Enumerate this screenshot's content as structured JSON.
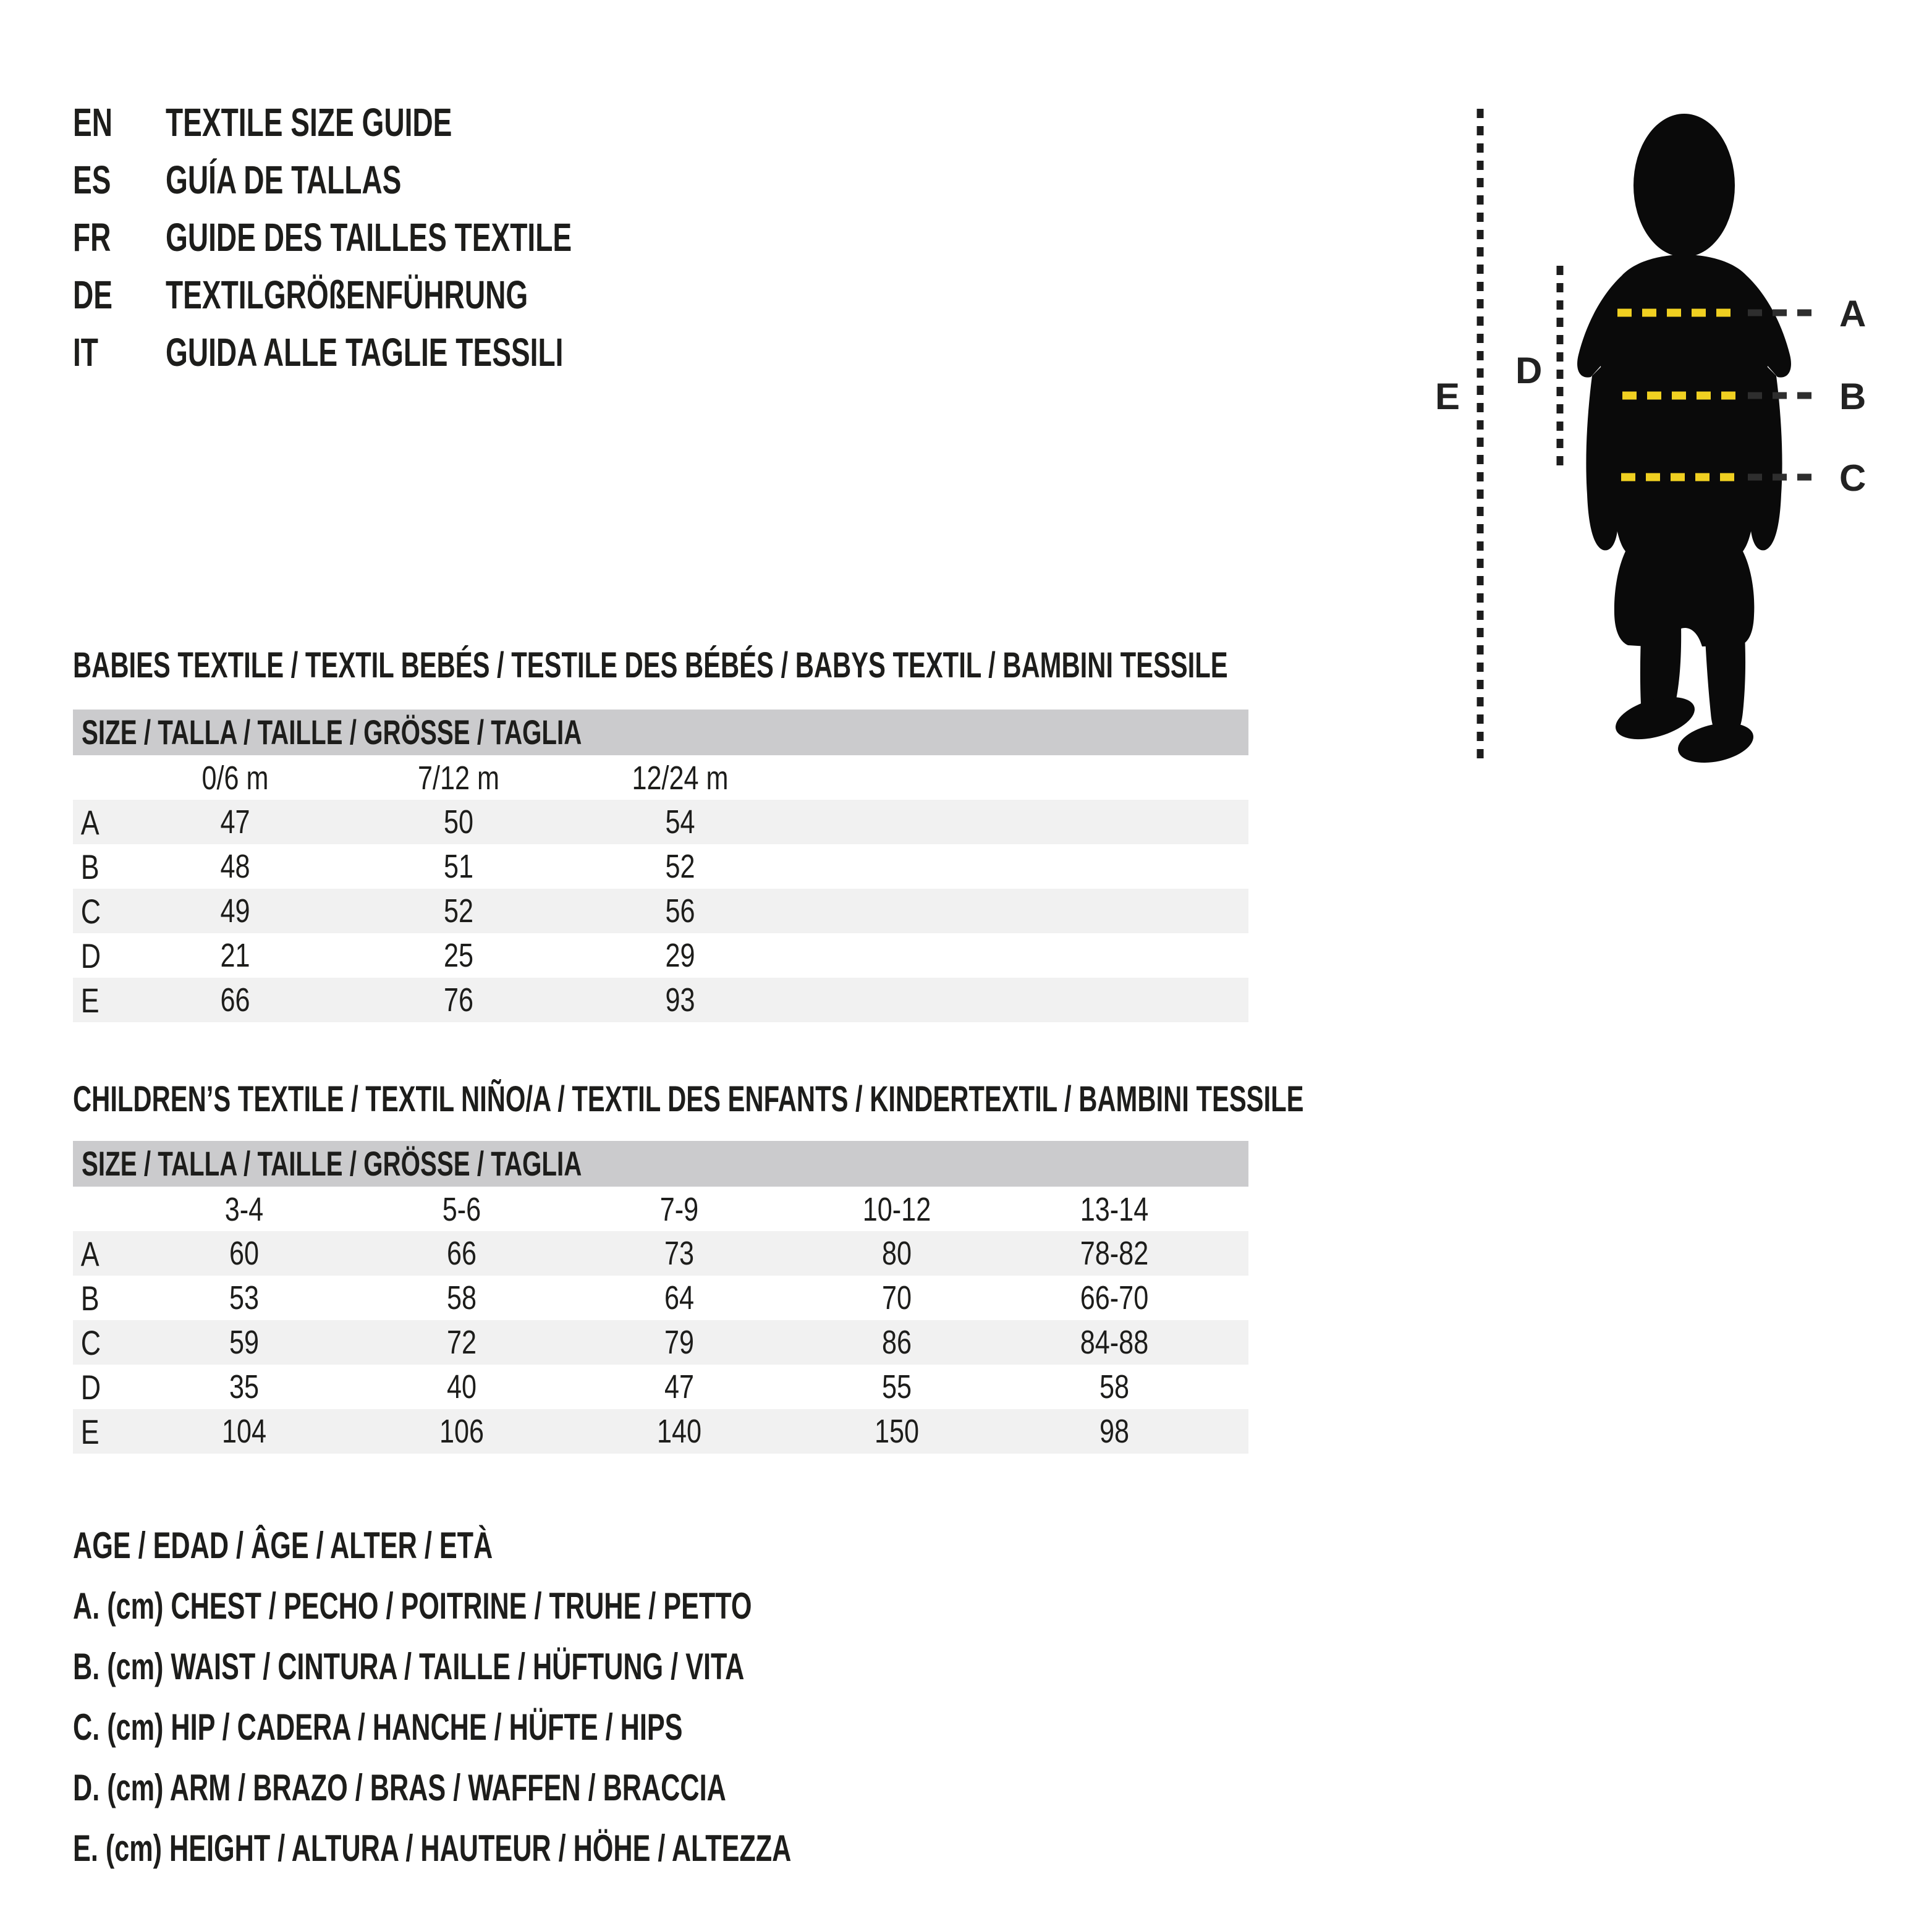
{
  "page": {
    "background": "#ffffff",
    "text_color": "#1d1d1b"
  },
  "colors": {
    "accent_yellow": "#f0d021",
    "dark_dash": "#2e2e2e",
    "silhouette": "#0a0a0a",
    "table_header_bg": "#cbcbcd",
    "row_stripe_bg": "#f1f1f1"
  },
  "languages": [
    {
      "code": "EN",
      "title": "TEXTILE SIZE GUIDE"
    },
    {
      "code": "ES",
      "title": "GUÍA DE TALLAS"
    },
    {
      "code": "FR",
      "title": "GUIDE DES TAILLES TEXTILE"
    },
    {
      "code": "DE",
      "title": "TEXTILGRÖßENFÜHRUNG"
    },
    {
      "code": "IT",
      "title": "GUIDA ALLE TAGLIE TESSILI"
    }
  ],
  "figure": {
    "icon": "child-silhouette",
    "labels": {
      "A": "A",
      "B": "B",
      "C": "C",
      "D": "D",
      "E": "E"
    }
  },
  "babies_table": {
    "section_title": "BABIES TEXTILE / TEXTIL BEBÉS / TESTILE DES BÉBÉS / BABYS TEXTIL / BAMBINI TESSILE",
    "header": "SIZE / TALLA / TAILLE / GRÖSSE / TAGLIA",
    "columns": [
      "0/6 m",
      "7/12 m",
      "12/24 m"
    ],
    "rows": [
      {
        "label": "A",
        "values": [
          "47",
          "50",
          "54"
        ]
      },
      {
        "label": "B",
        "values": [
          "48",
          "51",
          "52"
        ]
      },
      {
        "label": "C",
        "values": [
          "49",
          "52",
          "56"
        ]
      },
      {
        "label": "D",
        "values": [
          "21",
          "25",
          "29"
        ]
      },
      {
        "label": "E",
        "values": [
          "66",
          "76",
          "93"
        ]
      }
    ]
  },
  "children_table": {
    "section_title": "CHILDREN’S TEXTILE / TEXTIL NIÑO/A / TEXTIL DES ENFANTS / KINDERTEXTIL / BAMBINI TESSILE",
    "header": "SIZE / TALLA / TAILLE / GRÖSSE / TAGLIA",
    "columns": [
      "3-4",
      "5-6",
      "7-9",
      "10-12",
      "13-14"
    ],
    "rows": [
      {
        "label": "A",
        "values": [
          "60",
          "66",
          "73",
          "80",
          "78-82"
        ]
      },
      {
        "label": "B",
        "values": [
          "53",
          "58",
          "64",
          "70",
          "66-70"
        ]
      },
      {
        "label": "C",
        "values": [
          "59",
          "72",
          "79",
          "86",
          "84-88"
        ]
      },
      {
        "label": "D",
        "values": [
          "35",
          "40",
          "47",
          "55",
          "58"
        ]
      },
      {
        "label": "E",
        "values": [
          "104",
          "106",
          "140",
          "150",
          "98"
        ]
      }
    ]
  },
  "legend": [
    "AGE / EDAD / ÂGE / ALTER / ETÀ",
    "A. (cm) CHEST / PECHO / POITRINE / TRUHE / PETTO",
    "B. (cm) WAIST / CINTURA / TAILLE / HÜFTUNG / VITA",
    "C. (cm) HIP / CADERA / HANCHE / HÜFTE / HIPS",
    "D. (cm) ARM / BRAZO / BRAS / WAFFEN / BRACCIA",
    "E. (cm) HEIGHT / ALTURA / HAUTEUR / HÖHE / ALTEZZA"
  ]
}
